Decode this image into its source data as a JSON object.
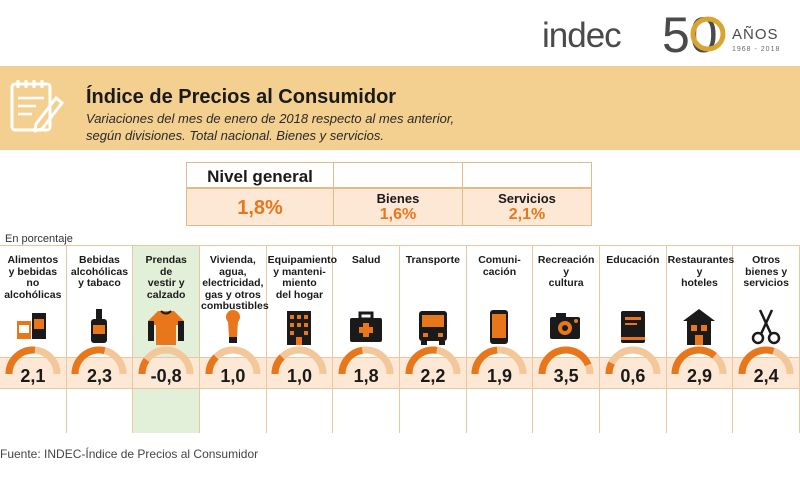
{
  "logo": {
    "word": "indec",
    "number": "50",
    "anos": "AÑOS",
    "years": "1968 - 2018",
    "color_ring": "#d8a531"
  },
  "header": {
    "title": "Índice de Precios al Consumidor",
    "subtitle_line1": "Variaciones del mes de enero de 2018 respecto al mes anterior,",
    "subtitle_line2": "según divisiones. Total nacional. Bienes y servicios."
  },
  "summary": {
    "nivel_general_label": "Nivel general",
    "nivel_general_value": "1,8%",
    "bienes_label": "Bienes",
    "bienes_value": "1,6%",
    "servicios_label": "Servicios",
    "servicios_value": "2,1%"
  },
  "unit_note": "En porcentaje",
  "source": "Fuente: INDEC-Índice de Precios al Consumidor",
  "chart_data": {
    "type": "table",
    "title": "Índice de Precios al Consumidor",
    "subtitle": "Variaciones del mes de enero de 2018 respecto al mes anterior, según divisiones. Total nacional. Bienes y servicios.",
    "unit": "En porcentaje",
    "summary": [
      {
        "name": "Nivel general",
        "value": 1.8
      },
      {
        "name": "Bienes",
        "value": 1.6
      },
      {
        "name": "Servicios",
        "value": 2.1
      }
    ],
    "categories": [
      "Alimentos y bebidas no alcohólicas",
      "Bebidas alcohólicas y tabaco",
      "Prendas de vestir y calzado",
      "Vivienda, agua, electricidad, gas y otros combustibles",
      "Equipamiento y mantenimiento del hogar",
      "Salud",
      "Transporte",
      "Comunicación",
      "Recreación y cultura",
      "Educación",
      "Restaurantes y hoteles",
      "Otros bienes y servicios"
    ],
    "values": [
      2.1,
      2.3,
      -0.8,
      1.0,
      1.0,
      1.8,
      2.2,
      1.9,
      3.5,
      0.6,
      2.9,
      2.4
    ],
    "value_labels": [
      "2,1",
      "2,3",
      "-0,8",
      "1,0",
      "1,0",
      "1,8",
      "2,2",
      "1,9",
      "3,5",
      "0,6",
      "2,9",
      "2,4"
    ],
    "name_lines": [
      [
        "Alimentos",
        "y bebidas",
        "no",
        "alcohólicas"
      ],
      [
        "Bebidas",
        "alcohólicas",
        "y tabaco"
      ],
      [
        "Prendas",
        "de",
        "vestir y",
        "calzado"
      ],
      [
        "Vivienda,",
        "agua,",
        "electricidad,",
        "gas y otros",
        "combustibles"
      ],
      [
        "Equipamiento",
        "y manteni-",
        "miento",
        "del hogar"
      ],
      [
        "Salud"
      ],
      [
        "Transporte"
      ],
      [
        "Comuni-",
        "cación"
      ],
      [
        "Recreación",
        "y",
        "cultura"
      ],
      [
        "Educación"
      ],
      [
        "Restaurantes",
        "y",
        "hoteles"
      ],
      [
        "Otros",
        "bienes y",
        "servicios"
      ]
    ],
    "icons": [
      "food-box-icon",
      "bottle-icon",
      "sweater-icon",
      "lightbulb-icon",
      "building-icon",
      "first-aid-kit-icon",
      "bus-icon",
      "smartphone-icon",
      "camera-icon",
      "notebook-icon",
      "house-icon",
      "scissors-icon"
    ],
    "highlight_negative": true,
    "gauge_max": 4.0,
    "colors": {
      "accent": "#e8761b",
      "gauge_track": "#f2c79a",
      "band": "#f3cf90",
      "negative_bg": "#e3f0d9",
      "value_band": "#fde7d5"
    }
  }
}
